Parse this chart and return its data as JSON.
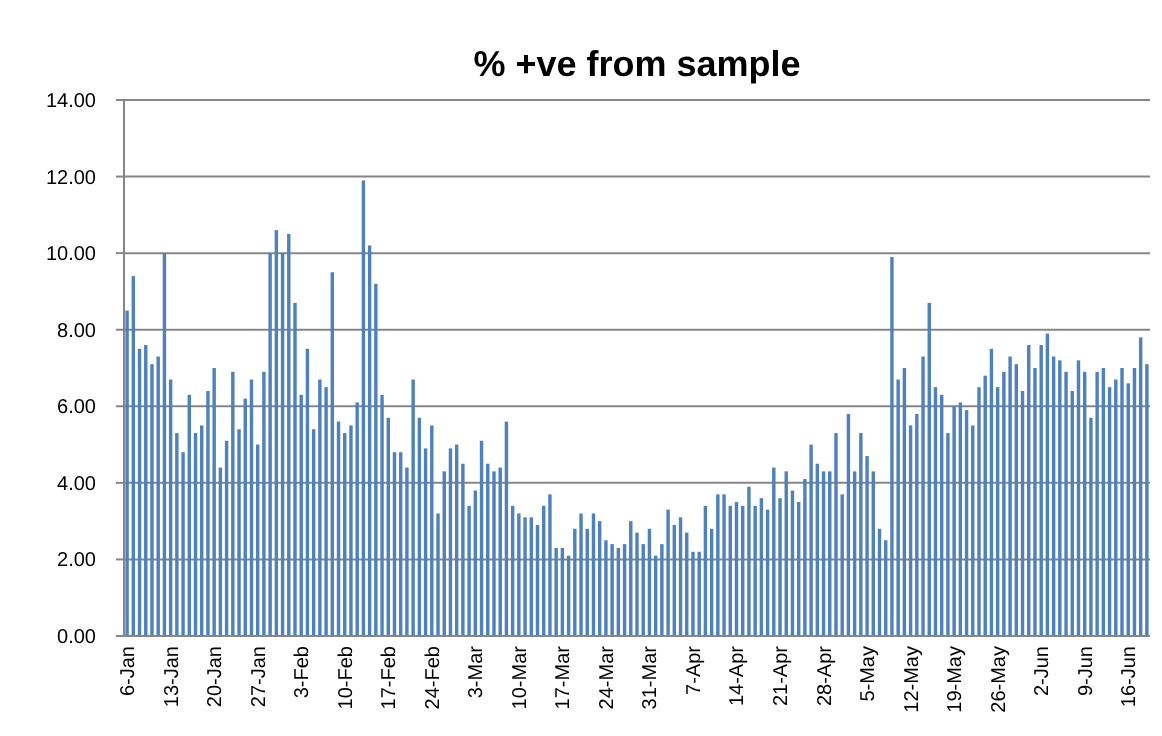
{
  "chart_data": {
    "type": "bar",
    "title": "% +ve from sample",
    "categories": [
      "6-Jan",
      null,
      null,
      null,
      null,
      null,
      null,
      "13-Jan",
      null,
      null,
      null,
      null,
      null,
      null,
      "20-Jan",
      null,
      null,
      null,
      null,
      null,
      null,
      "27-Jan",
      null,
      null,
      null,
      null,
      null,
      null,
      "3-Feb",
      null,
      null,
      null,
      null,
      null,
      null,
      "10-Feb",
      null,
      null,
      null,
      null,
      null,
      null,
      "17-Feb",
      null,
      null,
      null,
      null,
      null,
      null,
      "24-Feb",
      null,
      null,
      null,
      null,
      null,
      null,
      "3-Mar",
      null,
      null,
      null,
      null,
      null,
      null,
      "10-Mar",
      null,
      null,
      null,
      null,
      null,
      null,
      "17-Mar",
      null,
      null,
      null,
      null,
      null,
      null,
      "24-Mar",
      null,
      null,
      null,
      null,
      null,
      null,
      "31-Mar",
      null,
      null,
      null,
      null,
      null,
      null,
      "7-Apr",
      null,
      null,
      null,
      null,
      null,
      null,
      "14-Apr",
      null,
      null,
      null,
      null,
      null,
      null,
      "21-Apr",
      null,
      null,
      null,
      null,
      null,
      null,
      "28-Apr",
      null,
      null,
      null,
      null,
      null,
      null,
      "5-May",
      null,
      null,
      null,
      null,
      null,
      null,
      "12-May",
      null,
      null,
      null,
      null,
      null,
      null,
      "19-May",
      null,
      null,
      null,
      null,
      null,
      null,
      "26-May",
      null,
      null,
      null,
      null,
      null,
      null,
      "2-Jun",
      null,
      null,
      null,
      null,
      null,
      null,
      "9-Jun",
      null,
      null,
      null,
      null,
      null,
      null,
      "16-Jun",
      null,
      null,
      null
    ],
    "values": [
      8.5,
      9.4,
      7.5,
      7.6,
      7.1,
      7.3,
      10.0,
      6.7,
      5.3,
      4.8,
      6.3,
      5.3,
      5.5,
      6.4,
      7.0,
      4.4,
      5.1,
      6.9,
      5.4,
      6.2,
      6.7,
      5.0,
      6.9,
      10.0,
      10.6,
      10.0,
      10.5,
      8.7,
      6.3,
      7.5,
      5.4,
      6.7,
      6.5,
      9.5,
      5.6,
      5.3,
      5.5,
      6.1,
      11.9,
      10.2,
      9.2,
      6.3,
      5.7,
      4.8,
      4.8,
      4.4,
      6.7,
      5.7,
      4.9,
      5.5,
      3.2,
      4.3,
      4.9,
      5.0,
      4.5,
      3.4,
      3.8,
      5.1,
      4.5,
      4.3,
      4.4,
      5.6,
      3.4,
      3.2,
      3.1,
      3.1,
      2.9,
      3.4,
      3.7,
      2.3,
      2.3,
      2.1,
      2.8,
      3.2,
      2.8,
      3.2,
      3.0,
      2.5,
      2.4,
      2.3,
      2.4,
      3.0,
      2.7,
      2.4,
      2.8,
      2.1,
      2.4,
      3.3,
      2.9,
      3.1,
      2.7,
      2.2,
      2.2,
      3.4,
      2.8,
      3.7,
      3.7,
      3.4,
      3.5,
      3.4,
      3.9,
      3.4,
      3.6,
      3.3,
      4.4,
      3.6,
      4.3,
      3.8,
      3.5,
      4.1,
      5.0,
      4.5,
      4.3,
      4.3,
      5.3,
      3.7,
      5.8,
      4.3,
      5.3,
      4.7,
      4.3,
      2.8,
      2.5,
      9.9,
      6.7,
      7.0,
      5.5,
      5.8,
      7.3,
      8.7,
      6.5,
      6.3,
      5.3,
      6.0,
      6.1,
      5.9,
      5.5,
      6.5,
      6.8,
      7.5,
      6.5,
      6.9,
      7.3,
      7.1,
      6.4,
      7.6,
      7.0,
      7.6,
      7.9,
      7.3,
      7.2,
      6.9,
      6.4,
      7.2,
      6.9,
      5.7,
      6.9,
      7.0,
      6.5,
      6.7,
      7.0,
      6.6,
      7.0,
      7.8,
      7.1
    ],
    "color": "#4f81bd",
    "ylim": [
      0,
      14
    ],
    "yticks": [
      {
        "value": 0,
        "label": "0.00"
      },
      {
        "value": 2,
        "label": "2.00"
      },
      {
        "value": 4,
        "label": "4.00"
      },
      {
        "value": 6,
        "label": "6.00"
      },
      {
        "value": 8,
        "label": "8.00"
      },
      {
        "value": 10,
        "label": "10.00"
      },
      {
        "value": 12,
        "label": "12.00"
      },
      {
        "value": 14,
        "label": "14.00"
      }
    ],
    "grid": "y"
  }
}
